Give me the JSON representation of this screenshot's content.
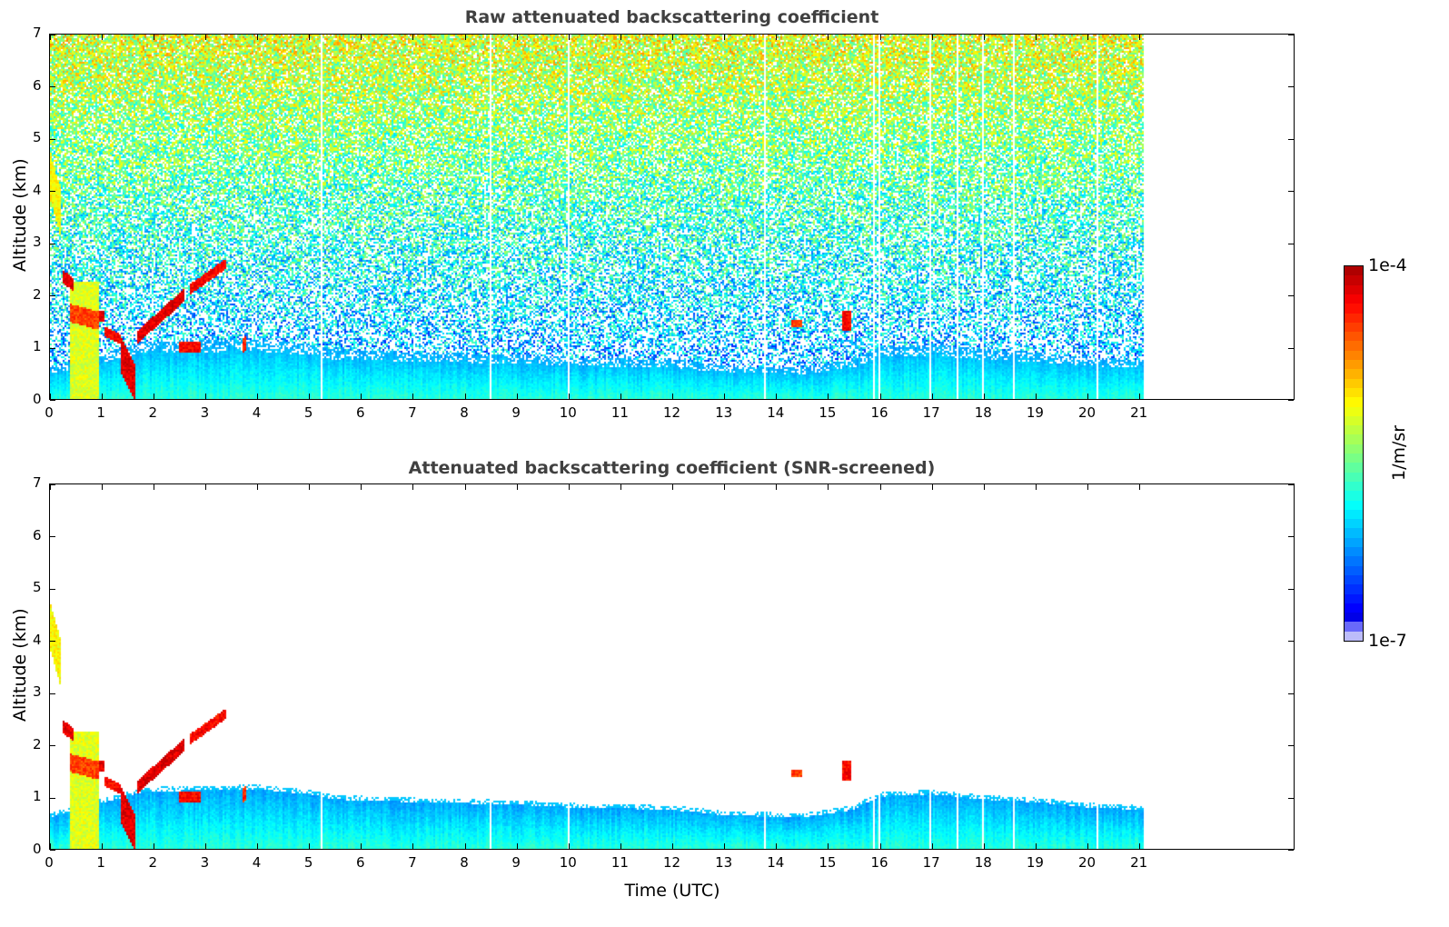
{
  "chart_data": [
    {
      "type": "heatmap",
      "title": "Raw attenuated backscattering coefficient",
      "xlabel": "",
      "ylabel": "Altitude (km)",
      "xlim": [
        0,
        24
      ],
      "ylim": [
        0,
        7
      ],
      "xticks": [
        0,
        1,
        2,
        3,
        4,
        5,
        6,
        7,
        8,
        9,
        10,
        11,
        12,
        13,
        14,
        15,
        16,
        17,
        18,
        19,
        20,
        21
      ],
      "yticks": [
        0,
        1,
        2,
        3,
        4,
        5,
        6,
        7
      ],
      "screened": false
    },
    {
      "type": "heatmap",
      "title": "Attenuated backscattering coefficient (SNR-screened)",
      "xlabel": "Time (UTC)",
      "ylabel": "Altitude (km)",
      "xlim": [
        0,
        24
      ],
      "ylim": [
        0,
        7
      ],
      "xticks": [
        0,
        1,
        2,
        3,
        4,
        5,
        6,
        7,
        8,
        9,
        10,
        11,
        12,
        13,
        14,
        15,
        16,
        17,
        18,
        19,
        20,
        21
      ],
      "yticks": [
        0,
        1,
        2,
        3,
        4,
        5,
        6,
        7
      ],
      "screened": true
    }
  ],
  "shared": {
    "data_end_time": 21.1,
    "data_gaps_utc": [
      5.25,
      8.5,
      10.0,
      13.8,
      15.9,
      16.0,
      17.0,
      17.5,
      18.0,
      18.6,
      20.2
    ],
    "boundary_layer_top_km": [
      [
        0,
        0.6
      ],
      [
        1.8,
        1.1
      ],
      [
        4,
        1.15
      ],
      [
        5,
        1.05
      ],
      [
        5.5,
        0.95
      ],
      [
        7,
        0.9
      ],
      [
        9,
        0.85
      ],
      [
        10,
        0.8
      ],
      [
        12,
        0.75
      ],
      [
        13,
        0.65
      ],
      [
        14.5,
        0.6
      ],
      [
        15.5,
        0.75
      ],
      [
        16,
        1.0
      ],
      [
        17,
        1.05
      ],
      [
        18,
        0.95
      ],
      [
        19,
        0.9
      ],
      [
        20,
        0.8
      ],
      [
        21.1,
        0.75
      ]
    ],
    "features": [
      {
        "t0": 0.0,
        "t1": 0.2,
        "z_start": 4.3,
        "z_end": 3.6,
        "thick": 0.9,
        "log_value": -5.1
      },
      {
        "t0": 0.25,
        "t1": 0.45,
        "z_start": 2.35,
        "z_end": 2.2,
        "thick": 0.25,
        "log_value": -4.2
      },
      {
        "t0": 0.4,
        "t1": 0.95,
        "z_start": 1.1,
        "z_end": 1.1,
        "thick": 2.3,
        "log_value": -5.2
      },
      {
        "t0": 0.4,
        "t1": 0.95,
        "z_start": 1.65,
        "z_end": 1.5,
        "thick": 0.35,
        "log_value": -4.5
      },
      {
        "t0": 0.95,
        "t1": 1.05,
        "z_start": 1.6,
        "z_end": 1.6,
        "thick": 0.2,
        "log_value": -4.2
      },
      {
        "t0": 1.05,
        "t1": 1.35,
        "z_start": 1.3,
        "z_end": 1.15,
        "thick": 0.2,
        "log_value": -4.3
      },
      {
        "t0": 1.35,
        "t1": 1.65,
        "z_start": 0.9,
        "z_end": 0.3,
        "thick": 0.7,
        "log_value": -4.2
      },
      {
        "t0": 1.7,
        "t1": 2.6,
        "z_start": 1.2,
        "z_end": 2.0,
        "thick": 0.25,
        "log_value": -4.2
      },
      {
        "t0": 2.7,
        "t1": 3.4,
        "z_start": 2.1,
        "z_end": 2.6,
        "thick": 0.2,
        "log_value": -4.3
      },
      {
        "t0": 2.5,
        "t1": 2.9,
        "z_start": 1.0,
        "z_end": 1.0,
        "thick": 0.2,
        "log_value": -4.3
      },
      {
        "t0": 3.7,
        "t1": 3.8,
        "z_start": 1.0,
        "z_end": 1.1,
        "thick": 0.3,
        "log_value": -4.4
      },
      {
        "t0": 14.3,
        "t1": 14.5,
        "z_start": 1.45,
        "z_end": 1.45,
        "thick": 0.15,
        "log_value": -4.5
      },
      {
        "t0": 15.3,
        "t1": 15.45,
        "z_start": 1.5,
        "z_end": 1.5,
        "thick": 0.4,
        "log_value": -4.3
      }
    ]
  },
  "colorbar": {
    "label": "1/m/sr",
    "max_label": "1e-4",
    "min_label": "1e-7",
    "log_min": -7,
    "log_max": -4,
    "colormap": "jet"
  }
}
